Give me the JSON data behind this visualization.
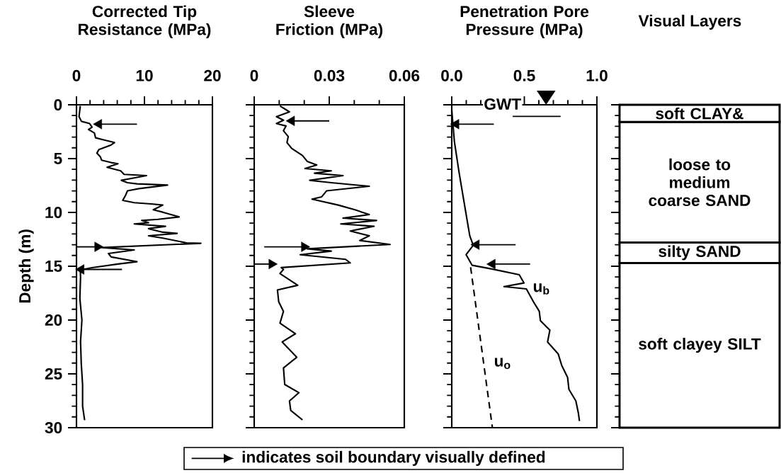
{
  "chart_data": [
    {
      "type": "line",
      "xlabel": "Corrected Tip Resistance (MPa)",
      "ylabel": "Depth (m)",
      "xlim": [
        0,
        20
      ],
      "xticks": [
        0,
        10,
        20
      ],
      "ylim": [
        30,
        0
      ],
      "yticks": [
        0,
        5,
        10,
        15,
        20,
        25,
        30
      ],
      "legend": "bottom",
      "series": [
        {
          "color": "#000000",
          "x": [
            0.56,
            0.38,
            0.73,
            1.94,
            2.29,
            1.77,
            2.64,
            2.81,
            4.2,
            5.6,
            5.1,
            3.3,
            3.0,
            3.5,
            3.7,
            5.1,
            6.1,
            4.5,
            6.5,
            7.0,
            10.3,
            8.5,
            6.6,
            7.5,
            8.9,
            13.4,
            9.2,
            7.5,
            7.2,
            6.8,
            8.5,
            11.0,
            12.7,
            11.3,
            12.7,
            15.1,
            12.0,
            9.6,
            10.6,
            8.5,
            13.1,
            10.6,
            12.7,
            14.8,
            10.6,
            12.7,
            16.2,
            18.3,
            3.7,
            8.5,
            4.7,
            5.1,
            8.9,
            6.1,
            2.3,
            0.56,
            0.6,
            0.5,
            0.8,
            0.6,
            0.7,
            0.9,
            0.9,
            1.2
          ],
          "values": [
            0.11,
            1.1,
            1.54,
            1.75,
            2.08,
            2.3,
            2.63,
            3.07,
            3.29,
            3.51,
            3.73,
            4.17,
            4.5,
            4.82,
            5.15,
            5.37,
            5.48,
            5.81,
            6.14,
            6.47,
            6.58,
            6.8,
            7.02,
            7.24,
            7.35,
            7.46,
            7.79,
            8.0,
            8.44,
            8.88,
            9.1,
            9.21,
            9.32,
            9.76,
            9.98,
            10.42,
            10.64,
            10.75,
            10.96,
            11.07,
            11.29,
            11.51,
            11.84,
            11.95,
            12.17,
            12.39,
            12.83,
            12.87,
            13.27,
            13.49,
            13.82,
            14.14,
            14.58,
            14.8,
            15.13,
            15.35,
            16.0,
            18.0,
            20.0,
            22.0,
            24.0,
            26.0,
            28.0,
            29.3
          ]
        },
        {
          "type": "scatter",
          "name": "indicates soil boundary visually defined",
          "color": "#000000",
          "marker": "triangle",
          "x": [
            3.3,
            3.1,
            0.7
          ],
          "values": [
            1.8,
            13.2,
            15.3
          ],
          "xerrors": [
            [
              3.3,
              8.9
            ],
            [
              0,
              3.1
            ],
            [
              0.7,
              6.7
            ]
          ]
        }
      ]
    },
    {
      "type": "line",
      "xlabel": "Sleeve Friction (MPa)",
      "xlim": [
        0,
        0.06
      ],
      "xticks": [
        0,
        0.03,
        0.06
      ],
      "ylim": [
        30,
        0
      ],
      "yticks": [
        0,
        5,
        10,
        15,
        20,
        25,
        30
      ],
      "tick_labels": "x",
      "series": [
        {
          "color": "#000000",
          "x": [
            0.0103,
            0.0141,
            0.0089,
            0.0117,
            0.0089,
            0.0127,
            0.0117,
            0.0136,
            0.0131,
            0.015,
            0.0193,
            0.0212,
            0.025,
            0.0203,
            0.0308,
            0.0241,
            0.0355,
            0.0222,
            0.0308,
            0.046,
            0.0289,
            0.027,
            0.0231,
            0.0336,
            0.0403,
            0.046,
            0.0355,
            0.0489,
            0.0346,
            0.0479,
            0.0384,
            0.046,
            0.0422,
            0.0543,
            0.0212,
            0.0308,
            0.0184,
            0.0365,
            0.0384,
            0.0108,
            0.0117,
            0.0103,
            0.0174,
            0.0093,
            0.0098,
            0.0117,
            0.0103,
            0.0165,
            0.0112,
            0.017,
            0.0117,
            0.0122,
            0.0179,
            0.0141,
            0.0146,
            0.0193
          ],
          "values": [
            0.11,
            0.66,
            1.1,
            1.43,
            1.75,
            1.97,
            2.41,
            2.96,
            3.51,
            4.06,
            4.71,
            5.26,
            5.59,
            5.92,
            6.14,
            6.36,
            6.58,
            7.02,
            7.24,
            7.57,
            8.0,
            8.55,
            8.77,
            9.32,
            9.76,
            10.2,
            10.53,
            10.75,
            11.07,
            11.29,
            11.73,
            12.17,
            12.61,
            12.98,
            13.38,
            13.6,
            13.93,
            14.36,
            14.69,
            15.13,
            15.3,
            15.68,
            16.77,
            17.21,
            18.31,
            19.19,
            20.29,
            21.27,
            22.04,
            23.46,
            24.45,
            25.99,
            26.75,
            27.52,
            28.4,
            29.28
          ]
        },
        {
          "type": "scatter",
          "color": "#000000",
          "marker": "triangle",
          "x": [
            0.015,
            0.02,
            0.007
          ],
          "values": [
            1.5,
            13.2,
            14.8
          ],
          "xerrors": [
            [
              0.015,
              0.03
            ],
            [
              0.004,
              0.02
            ],
            [
              0,
              0.007
            ]
          ]
        }
      ]
    },
    {
      "type": "line",
      "xlabel": "Penetration Pore Pressure (MPa)",
      "xlim": [
        0,
        1
      ],
      "xticks": [
        {
          "value": 0,
          "label": "0.0"
        },
        0.5,
        {
          "value": 1,
          "label": "1.0"
        }
      ],
      "ylim": [
        30,
        0
      ],
      "yticks": [
        0,
        5,
        10,
        15,
        20,
        25,
        30
      ],
      "tick_labels": "x",
      "annotations": [
        "GWT"
      ],
      "series": [
        {
          "name": "u$_{b}$",
          "color": "#000000",
          "line_style": "solid",
          "x": [
            0.0,
            0.01,
            0.018,
            0.05,
            0.091,
            0.124,
            0.148,
            0.099,
            0.14,
            0.27,
            0.465,
            0.498,
            0.36,
            0.514,
            0.563,
            0.603,
            0.611,
            0.676,
            0.66,
            0.733,
            0.758,
            0.798,
            0.807,
            0.855,
            0.872,
            0.88
          ],
          "values": [
            0.5,
            2.08,
            3.4,
            6.25,
            9.54,
            12.17,
            13.05,
            13.93,
            14.91,
            15.24,
            15.79,
            16.56,
            16.89,
            17.11,
            18.31,
            19.19,
            20.07,
            20.94,
            22.04,
            23.14,
            24.23,
            25.33,
            26.43,
            27.52,
            28.62,
            29.39
          ]
        },
        {
          "name": "u$_{o}$",
          "color": "#000000",
          "line_style": "dashed",
          "x": [
            0.13,
            0.28
          ],
          "values": [
            15.1,
            30
          ]
        },
        {
          "type": "scatter",
          "color": "#000000",
          "marker": "triangle",
          "x": [
            0.03,
            0.17,
            0.28
          ],
          "values": [
            1.8,
            13.0,
            14.8
          ],
          "xerrors": [
            [
              0.03,
              0.29
            ],
            [
              0.17,
              0.44
            ],
            [
              0.28,
              0.54
            ]
          ]
        }
      ]
    },
    {
      "type": "bar",
      "title": "Visual Layers",
      "categories": [
        null
      ],
      "stacked": true,
      "ylim": [
        30,
        0
      ],
      "yticks": [
        0,
        5,
        10,
        15,
        20,
        25,
        30
      ],
      "tick_labels": false,
      "series": [
        {
          "name": "soft CLAY&",
          "color": "#ffffff",
          "values": [
            1.6
          ]
        },
        {
          "name": "loose to medium coarse SAND",
          "color": "#ffffff",
          "values": [
            11.2
          ]
        },
        {
          "name": "silty SAND",
          "color": "#ffffff",
          "values": [
            1.9
          ]
        },
        {
          "name": "soft clayey SILT",
          "color": "#ffffff",
          "values": [
            15.3
          ]
        }
      ]
    }
  ]
}
